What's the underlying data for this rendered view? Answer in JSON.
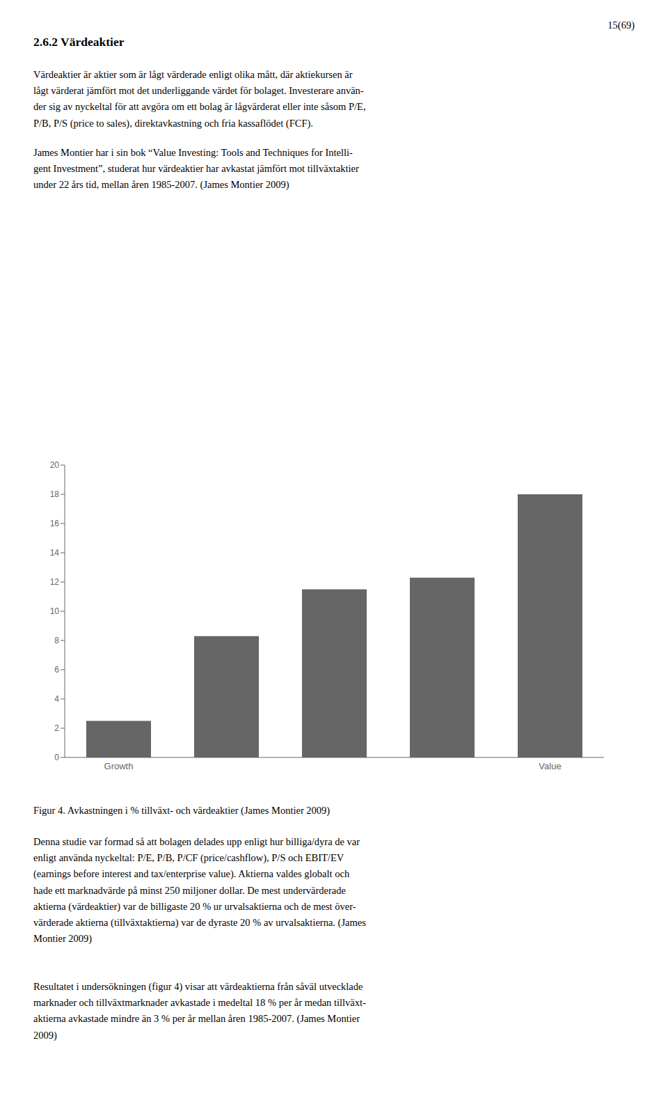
{
  "chart_data": {
    "type": "bar",
    "title": "2.6.2   Värdeaktier",
    "annotations": [
      "15(69)",
      "Värdeaktier är aktier som är lågt värderade enligt olika mått, där aktiekursen är\nlågt värderat jämfört mot det underliggande värdet för bolaget. Investerare använ-\nder sig av nyckeltal för att avgöra om ett bolag är lågvärderat eller inte såsom P/E,\nP/B, P/S (price to sales), direktavkastning och fria kassaflödet (FCF).",
      "James Montier har i sin bok “Value Investing: Tools and Techniques for Intelli-\ngent Investment”, studerat hur värdeaktier har avkastat jämfört mot tillväxtaktier\nunder 22 års tid, mellan åren 1985-2007. (James Montier 2009)",
      "Figur 4. Avkastningen i % tillväxt- och värdeaktier (James Montier 2009)",
      "Denna studie var formad så att bolagen delades upp enligt hur billiga/dyra de var\nenligt använda nyckeltal: P/E, P/B, P/CF (price/cashflow), P/S och EBIT/EV\n(earnings before interest and tax/enterprise value). Aktierna valdes globalt och\nhade ett marknadvärde på minst 250 miljoner dollar. De mest undervärderade\naktierna (värdeaktier) var de billigaste 20 % ur urvalsaktierna och de mest över-\nvärderade aktierna (tillväxtaktierna) var de dyraste 20 % av urvalsaktierna. (James\nMontier 2009)",
      "Resultatet i undersökningen (figur 4) visar att värdeaktierna från såväl utvecklade\nmarknader och tillväxtmarknader avkastade i medeltal 18 % per år medan tillväxt-\naktierna avkastade mindre än 3 % per år mellan åren 1985-2007. (James Montier\n2009)"
    ],
    "categories": [
      "Growth",
      null,
      null,
      null,
      "Value"
    ],
    "values": [
      2.5,
      8.3,
      11.5,
      12.3,
      18.0
    ],
    "color": "#666666",
    "ylim": [
      0,
      20
    ],
    "yticks": [
      0,
      2,
      4,
      6,
      8,
      10,
      12,
      14,
      16,
      18,
      20
    ],
    "grid": false
  }
}
